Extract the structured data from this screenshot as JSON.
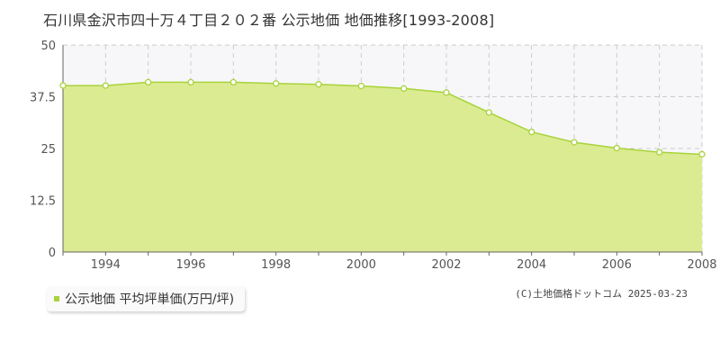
{
  "chart_data": {
    "type": "area",
    "title": "石川県金沢市四十万４丁目２０２番 公示地価 地価推移[1993-2008]",
    "x": [
      1993,
      1994,
      1995,
      1996,
      1997,
      1998,
      1999,
      2000,
      2001,
      2002,
      2003,
      2004,
      2005,
      2006,
      2007,
      2008
    ],
    "x_tick_labels": [
      "1994",
      "1996",
      "1998",
      "2000",
      "2002",
      "2004",
      "2006",
      "2008"
    ],
    "y_tick_labels": [
      "0",
      "12.5",
      "25",
      "37.5",
      "50"
    ],
    "ylim": [
      0,
      50
    ],
    "xlim": [
      1993,
      2008
    ],
    "grid": true,
    "legend_position": "bottom-left",
    "series": [
      {
        "name": "公示地価 平均坪単価(万円/坪)",
        "color": "#a8d33a",
        "fill_color": "#dbeb91",
        "values": [
          40.2,
          40.2,
          41.0,
          41.0,
          41.0,
          40.7,
          40.5,
          40.1,
          39.5,
          38.5,
          33.7,
          29.0,
          26.5,
          25.1,
          24.1,
          23.6
        ]
      }
    ]
  },
  "legend": {
    "label": "公示地価 平均坪単価(万円/坪)",
    "swatch_color": "#a8d33a"
  },
  "copyright": "(C)土地価格ドットコム 2025-03-23"
}
